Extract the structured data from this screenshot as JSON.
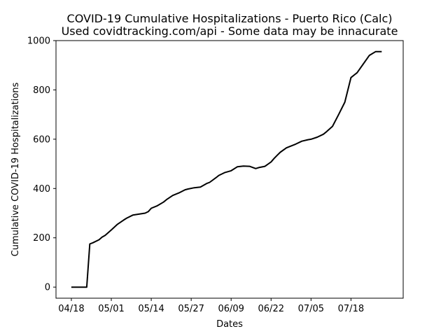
{
  "chart_data": {
    "type": "line",
    "title": "COVID-19 Cumulative Hospitalizations - Puerto Rico (Calc)",
    "subtitle": "Used covidtracking.com/api - Some data may be innacurate",
    "xlabel": "Dates",
    "ylabel": "Cumulative COVID-19 Hospitalizations",
    "ylim": [
      -45,
      1000
    ],
    "xlim": [
      "2020-04-13",
      "2020-08-04"
    ],
    "x_ticks": [
      "04/18",
      "05/01",
      "05/14",
      "05/27",
      "06/09",
      "06/22",
      "07/05",
      "07/18"
    ],
    "y_ticks": [
      0,
      200,
      400,
      600,
      800,
      1000
    ],
    "grid": false,
    "line_color": "#000000",
    "series": [
      {
        "x": [
          "2020-04-18",
          "2020-04-21",
          "2020-04-23",
          "2020-04-24",
          "2020-04-25",
          "2020-04-27",
          "2020-04-28",
          "2020-04-29",
          "2020-05-01",
          "2020-05-03",
          "2020-05-05",
          "2020-05-06",
          "2020-05-08",
          "2020-05-10",
          "2020-05-12",
          "2020-05-13",
          "2020-05-14",
          "2020-05-16",
          "2020-05-18",
          "2020-05-19",
          "2020-05-21",
          "2020-05-23",
          "2020-05-25",
          "2020-05-26",
          "2020-05-28",
          "2020-05-30",
          "2020-06-01",
          "2020-06-02",
          "2020-06-04",
          "2020-06-05",
          "2020-06-07",
          "2020-06-09",
          "2020-06-11",
          "2020-06-13",
          "2020-06-15",
          "2020-06-17",
          "2020-06-18",
          "2020-06-20",
          "2020-06-22",
          "2020-06-23",
          "2020-06-24",
          "2020-06-25",
          "2020-06-27",
          "2020-06-28",
          "2020-06-30",
          "2020-07-02",
          "2020-07-04",
          "2020-07-05",
          "2020-07-07",
          "2020-07-09",
          "2020-07-10",
          "2020-07-12",
          "2020-07-14",
          "2020-07-16",
          "2020-07-17",
          "2020-07-18",
          "2020-07-20",
          "2020-07-22",
          "2020-07-24",
          "2020-07-26",
          "2020-07-28"
        ],
        "values": [
          0,
          0,
          0,
          175,
          180,
          192,
          203,
          210,
          232,
          255,
          272,
          280,
          292,
          296,
          300,
          306,
          320,
          330,
          345,
          355,
          372,
          382,
          395,
          398,
          403,
          406,
          420,
          425,
          443,
          453,
          465,
          472,
          488,
          491,
          490,
          481,
          485,
          490,
          508,
          522,
          535,
          547,
          565,
          570,
          580,
          592,
          598,
          600,
          608,
          620,
          630,
          652,
          700,
          750,
          800,
          850,
          870,
          905,
          940,
          955,
          955
        ]
      }
    ]
  }
}
